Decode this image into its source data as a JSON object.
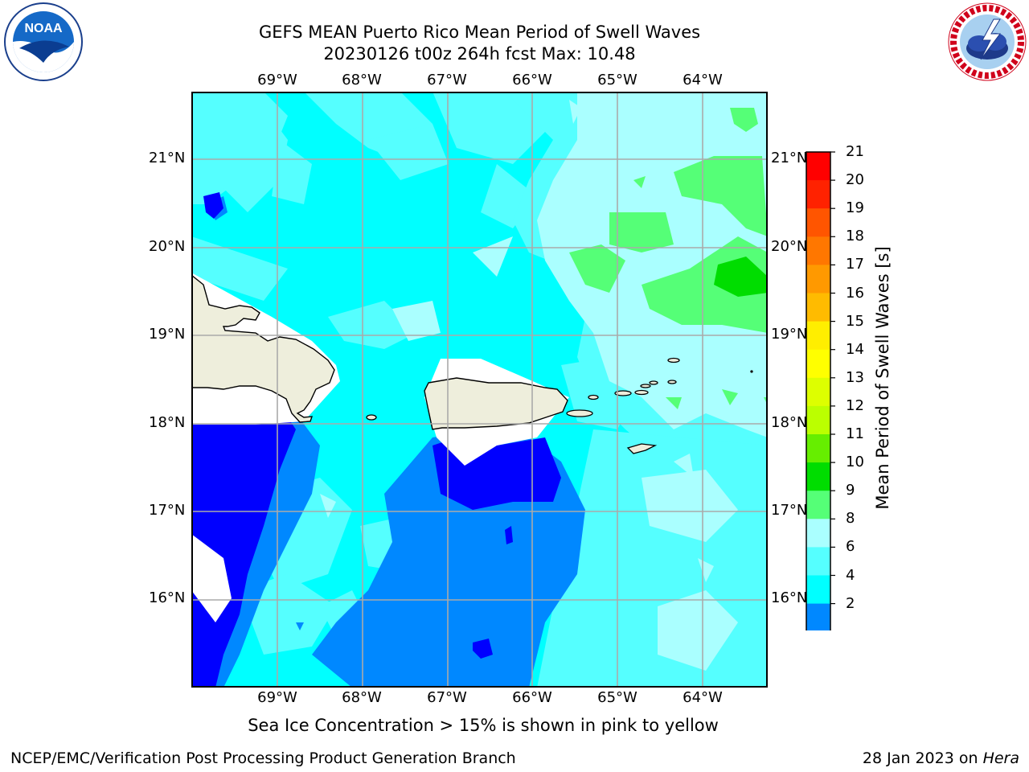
{
  "header": {
    "title_line1": "GEFS MEAN Puerto Rico Mean Period of Swell Waves",
    "title_line2": "20230126 t00z 264h fcst   Max: 10.48"
  },
  "logos": {
    "left": "noaa-logo",
    "right": "national-weather-service-logo"
  },
  "map": {
    "lon_labels": [
      "69°W",
      "68°W",
      "67°W",
      "66°W",
      "65°W",
      "64°W"
    ],
    "lat_labels": [
      "21°N",
      "20°N",
      "19°N",
      "18°N",
      "17°N",
      "16°N"
    ]
  },
  "colorbar": {
    "title": "Mean Period of Swell Waves [s]",
    "ticks": [
      "21",
      "20",
      "19",
      "18",
      "17",
      "16",
      "15",
      "14",
      "13",
      "12",
      "11",
      "10",
      "9",
      "8",
      "6",
      "4",
      "2"
    ],
    "colors": [
      "#ff0000",
      "#ff2200",
      "#ff5500",
      "#ff7700",
      "#ff9900",
      "#ffbb00",
      "#ffee00",
      "#ffff00",
      "#ddff00",
      "#bbff00",
      "#66ee00",
      "#00dd00",
      "#55ff77",
      "#aaffff",
      "#55ffff",
      "#00ffff",
      "#0088ff",
      "#0000ff"
    ]
  },
  "notes": {
    "sea_ice": "Sea Ice Concentration > 15% is shown in pink to yellow"
  },
  "footer": {
    "left": "NCEP/EMC/Verification Post Processing Product Generation Branch",
    "right_prefix": "28 Jan 2023 on ",
    "right_machine": "Hera"
  }
}
